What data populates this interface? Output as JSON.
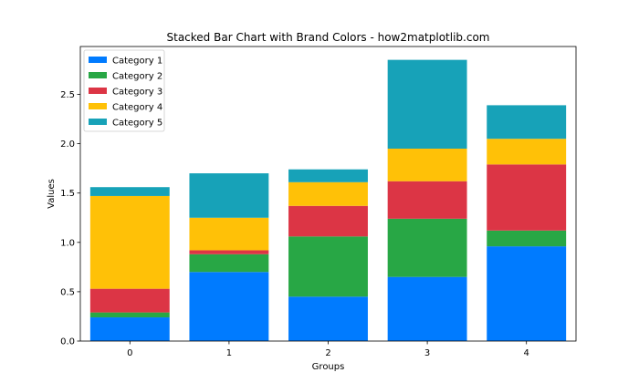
{
  "chart_data": {
    "type": "bar",
    "stacked": true,
    "title": "Stacked Bar Chart with Brand Colors - how2matplotlib.com",
    "xlabel": "Groups",
    "ylabel": "Values",
    "categories": [
      "0",
      "1",
      "2",
      "3",
      "4"
    ],
    "ylim": [
      0,
      3.0
    ],
    "yticks": [
      "0.0",
      "0.5",
      "1.0",
      "1.5",
      "2.0",
      "2.5"
    ],
    "grid": false,
    "legend_position": "top-left",
    "series": [
      {
        "name": "Category 1",
        "color": "#007bff",
        "values": [
          0.24,
          0.7,
          0.45,
          0.65,
          0.96
        ]
      },
      {
        "name": "Category 2",
        "color": "#28a745",
        "values": [
          0.05,
          0.18,
          0.61,
          0.59,
          0.16
        ]
      },
      {
        "name": "Category 3",
        "color": "#dc3545",
        "values": [
          0.24,
          0.04,
          0.31,
          0.38,
          0.67
        ]
      },
      {
        "name": "Category 4",
        "color": "#ffc107",
        "values": [
          0.94,
          0.33,
          0.24,
          0.33,
          0.26
        ]
      },
      {
        "name": "Category 5",
        "color": "#17a2b8",
        "values": [
          0.09,
          0.45,
          0.13,
          0.9,
          0.34
        ]
      }
    ]
  }
}
